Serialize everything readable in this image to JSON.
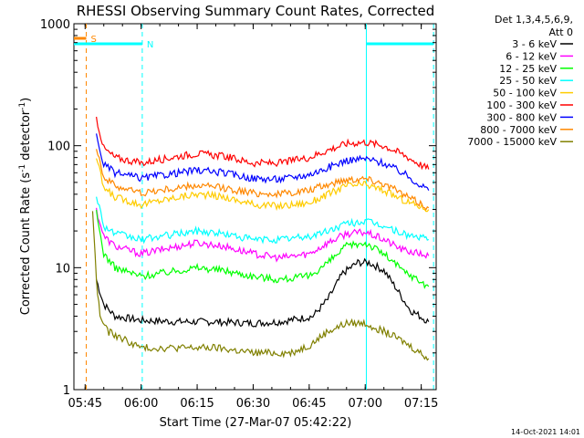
{
  "chart_data": {
    "type": "line",
    "title": "RHESSI Observing Summary Count Rates, Corrected",
    "xlabel": "Start Time (27-Mar-07 05:42:22)",
    "ylabel_prefix": "Corrected Count Rate (s",
    "ylabel_sup1": "-1",
    "ylabel_mid": " detector",
    "ylabel_sup2": "-1",
    "ylabel_suffix": ")",
    "y_scale": "log",
    "ylim": [
      1,
      1000
    ],
    "x_unit": "minutes after 05:40",
    "xlim": [
      2,
      99
    ],
    "x_ticks": [
      {
        "t": 5,
        "label": "05:45"
      },
      {
        "t": 20,
        "label": "06:00"
      },
      {
        "t": 35,
        "label": "06:15"
      },
      {
        "t": 50,
        "label": "06:30"
      },
      {
        "t": 65,
        "label": "06:45"
      },
      {
        "t": 80,
        "label": "07:00"
      },
      {
        "t": 95,
        "label": "07:15"
      }
    ],
    "y_ticks": [
      {
        "v": 1,
        "label": "1"
      },
      {
        "v": 10,
        "label": "10"
      },
      {
        "v": 100,
        "label": "100"
      },
      {
        "v": 1000,
        "label": "1000"
      }
    ],
    "legend_header": [
      "Det 1,3,4,5,6,9,",
      "Att 0"
    ],
    "legend_position": "right",
    "series": [
      {
        "name": "3 - 6 keV",
        "color": "#000000",
        "x": [
          8,
          10,
          13,
          20,
          30,
          40,
          50,
          57,
          62,
          66,
          70,
          74,
          78,
          81,
          85,
          88,
          92,
          97
        ],
        "y": [
          8,
          5,
          4,
          3.7,
          3.6,
          3.6,
          3.5,
          3.6,
          3.8,
          4,
          5.5,
          9,
          11,
          11,
          9.5,
          7,
          4.5,
          3.6
        ]
      },
      {
        "name": "6 - 12 keV",
        "color": "#ff00ff",
        "x": [
          8,
          10,
          13,
          20,
          30,
          35,
          42,
          50,
          57,
          65,
          70,
          75,
          80,
          85,
          90,
          97
        ],
        "y": [
          30,
          18,
          15,
          13,
          15,
          16,
          15,
          13,
          12,
          13,
          16,
          19,
          19.5,
          17,
          14,
          12.5
        ]
      },
      {
        "name": "12 - 25 keV",
        "color": "#00ff00",
        "x": [
          8,
          10,
          13,
          20,
          30,
          35,
          42,
          50,
          57,
          65,
          70,
          75,
          80,
          85,
          90,
          97
        ],
        "y": [
          28,
          13,
          10,
          8.5,
          9.5,
          10,
          9.5,
          8.5,
          8,
          8.5,
          11,
          15,
          16,
          13,
          9.5,
          7
        ]
      },
      {
        "name": "25 - 50 keV",
        "color": "#00ffff",
        "x": [
          8,
          10,
          13,
          20,
          30,
          35,
          42,
          50,
          57,
          65,
          70,
          75,
          80,
          85,
          90,
          97
        ],
        "y": [
          40,
          22,
          19,
          17,
          19,
          20,
          19,
          17,
          17,
          18,
          20,
          23,
          24,
          22,
          19,
          17
        ]
      },
      {
        "name": "50 - 100 keV",
        "color": "#ffcc00",
        "x": [
          8,
          10,
          13,
          20,
          30,
          35,
          42,
          50,
          57,
          65,
          70,
          75,
          80,
          85,
          90,
          97
        ],
        "y": [
          80,
          45,
          38,
          33,
          38,
          40,
          38,
          33,
          32,
          34,
          40,
          47,
          48,
          43,
          36,
          30
        ]
      },
      {
        "name": "100 - 300 keV",
        "color": "#ff0000",
        "x": [
          8,
          10,
          13,
          20,
          30,
          35,
          42,
          50,
          57,
          65,
          70,
          75,
          80,
          85,
          90,
          97
        ],
        "y": [
          170,
          95,
          80,
          72,
          82,
          86,
          82,
          72,
          72,
          80,
          92,
          104,
          107,
          100,
          85,
          64
        ]
      },
      {
        "name": "300 - 800 keV",
        "color": "#0000ff",
        "x": [
          8,
          10,
          13,
          20,
          30,
          35,
          42,
          50,
          57,
          65,
          70,
          75,
          80,
          85,
          90,
          97
        ],
        "y": [
          120,
          70,
          60,
          54,
          60,
          63,
          60,
          54,
          53,
          58,
          66,
          76,
          78,
          72,
          60,
          43
        ]
      },
      {
        "name": "800 - 7000 keV",
        "color": "#ff8800",
        "x": [
          8,
          10,
          13,
          20,
          30,
          35,
          42,
          50,
          57,
          65,
          70,
          75,
          80,
          85,
          90,
          97
        ],
        "y": [
          100,
          55,
          47,
          41,
          45,
          47,
          45,
          41,
          40,
          43,
          48,
          53,
          54,
          49,
          40,
          31
        ]
      },
      {
        "name": "7000 - 15000 keV",
        "color": "#808000",
        "x": [
          7,
          8,
          9,
          11,
          20,
          30,
          40,
          50,
          60,
          65,
          70,
          75,
          80,
          85,
          90,
          97
        ],
        "y": [
          30,
          8,
          4,
          3,
          2.2,
          2.2,
          2.2,
          2.0,
          2.0,
          2.3,
          3.0,
          3.5,
          3.5,
          3.0,
          2.5,
          1.8
        ]
      }
    ],
    "markers": [
      {
        "label": "S",
        "color": "#ff8800",
        "x_start": 2,
        "x_end": 5.3,
        "dashed_x": [
          5.3
        ]
      },
      {
        "label": "N",
        "color": "#00ffff",
        "x_start": 2,
        "x_end": 20.3,
        "dashed_x": [
          20.3,
          98.3
        ]
      },
      {
        "label": "",
        "color": "#00ffff",
        "x_start": 80.3,
        "x_end": 98.3,
        "solid_x": [
          80.3
        ]
      }
    ]
  },
  "footer": {
    "date": "14-Oct-2021 14:01"
  }
}
